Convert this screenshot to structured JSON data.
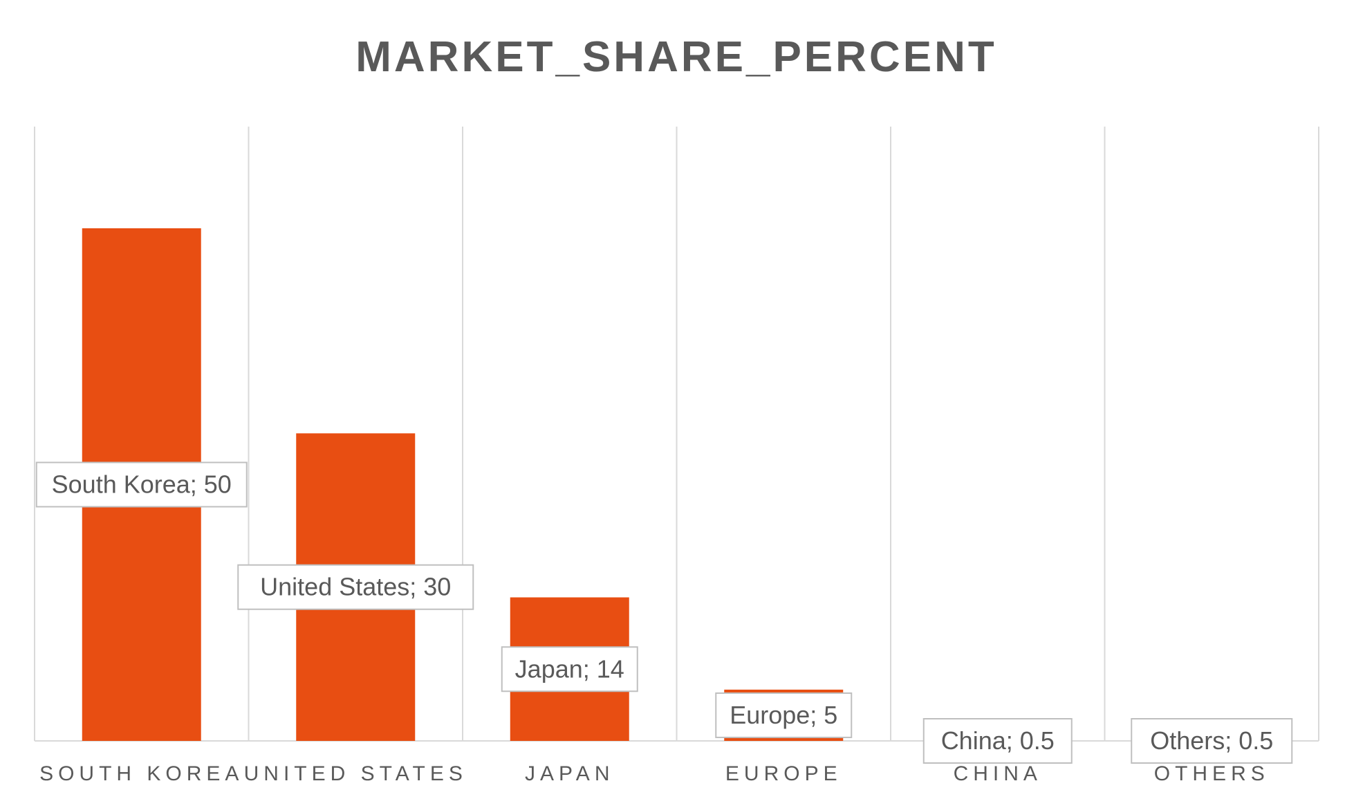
{
  "chart_data": {
    "type": "bar",
    "title": "MARKET_SHARE_PERCENT",
    "categories": [
      "SOUTH KOREA",
      "UNITED STATES",
      "JAPAN",
      "EUROPE",
      "CHINA",
      "OTHERS"
    ],
    "values": [
      50,
      30,
      14,
      5,
      0.5,
      0.5
    ],
    "data_labels": [
      "South Korea; 50",
      "United States; 30",
      "Japan; 14",
      "Europe; 5",
      "China; 0.5",
      "Others; 0.5"
    ],
    "ylim": [
      0,
      60
    ],
    "grid": "vertical",
    "legend": "none",
    "colors": {
      "bar": "#e84e12",
      "title": "#595959",
      "axis_label": "#595959",
      "grid": "#d9d9d9",
      "label_border": "#bfbfbf"
    }
  }
}
